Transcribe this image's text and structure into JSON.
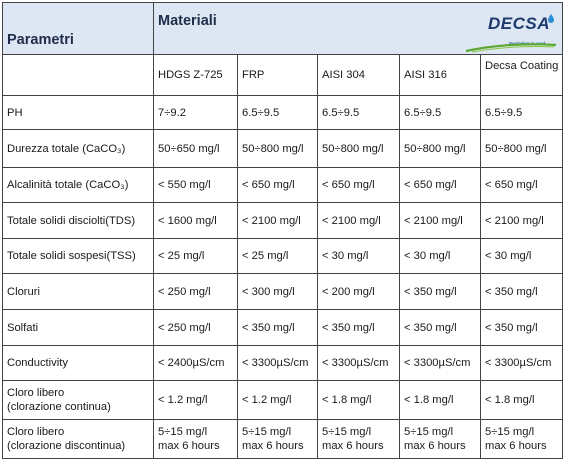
{
  "header": {
    "parametri": "Parametri",
    "materiali": "Materiali",
    "logo_text": "DECSA",
    "logo_tagline": "Evolution is cool"
  },
  "materials": [
    "HDGS Z-725",
    "FRP",
    "AISI 304",
    "AISI 316",
    "Decsa Coating"
  ],
  "rows": [
    {
      "param": "PH",
      "values": [
        "7÷9.2",
        "6.5÷9.5",
        "6.5÷9.5",
        "6.5÷9.5",
        "6.5÷9.5"
      ]
    },
    {
      "param": "Durezza totale (CaCO₃)",
      "values": [
        "50÷650 mg/l",
        "50÷800 mg/l",
        "50÷800 mg/l",
        "50÷800 mg/l",
        "50÷800 mg/l"
      ]
    },
    {
      "param": "Alcalinità totale (CaCO₃)",
      "values": [
        "< 550 mg/l",
        "< 650 mg/l",
        "< 650 mg/l",
        "< 650 mg/l",
        "< 650 mg/l"
      ]
    },
    {
      "param": "Totale solidi disciolti(TDS)",
      "values": [
        "< 1600 mg/l",
        "< 2100 mg/l",
        "< 2100 mg/l",
        "< 2100 mg/l",
        "< 2100 mg/l"
      ]
    },
    {
      "param": "Totale solidi sospesi(TSS)",
      "values": [
        "< 25 mg/l",
        "< 25 mg/l",
        "< 30 mg/l",
        "< 30 mg/l",
        "< 30 mg/l"
      ]
    },
    {
      "param": "Cloruri",
      "values": [
        "< 250 mg/l",
        "< 300 mg/l",
        "< 200 mg/l",
        "< 350 mg/l",
        "< 350 mg/l"
      ]
    },
    {
      "param": "Solfati",
      "values": [
        "< 250 mg/l",
        "< 350 mg/l",
        "< 350 mg/l",
        "< 350 mg/l",
        "< 350 mg/l"
      ]
    },
    {
      "param": "Conductivity",
      "values": [
        "< 2400µS/cm",
        "< 3300µS/cm",
        "< 3300µS/cm",
        "< 3300µS/cm",
        "< 3300µS/cm"
      ]
    },
    {
      "param_lines": [
        "Cloro libero",
        "(clorazione continua)"
      ],
      "values": [
        "< 1.2 mg/l",
        "< 1.2 mg/l",
        "< 1.8 mg/l",
        "< 1.8 mg/l",
        "< 1.8 mg/l"
      ]
    },
    {
      "param_lines": [
        "Cloro libero",
        "(clorazione discontinua)"
      ],
      "values_lines": [
        [
          "5÷15 mg/l",
          "max 6 hours"
        ],
        [
          "5÷15 mg/l",
          "max 6 hours"
        ],
        [
          "5÷15 mg/l",
          "max 6 hours"
        ],
        [
          "5÷15 mg/l",
          "max 6 hours"
        ],
        [
          "5÷15 mg/l",
          "max 6 hours"
        ]
      ]
    }
  ],
  "colors": {
    "header_bg": "#dde6f3",
    "border": "#444444",
    "logo_blue": "#1e3a6e",
    "logo_green": "#5aa832"
  }
}
